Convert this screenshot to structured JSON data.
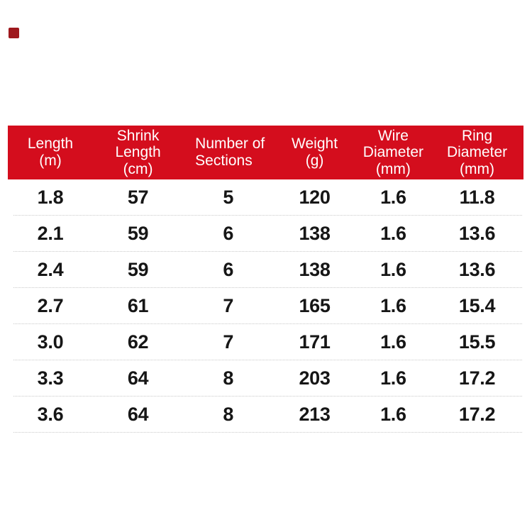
{
  "page": {
    "background_color": "#ffffff",
    "accent_color": "#d40d1d",
    "corner_mark_color": "#9e181d",
    "separator_color": "#c9c9c9",
    "data_text_color": "#161616",
    "header_text_color": "#ffffff"
  },
  "table": {
    "header": {
      "columns": [
        "Length\n(m)",
        "Shrink\nLength\n(cm)",
        "Number of\nSections",
        "Weight\n(g)",
        "Wire\nDiameter\n(mm)",
        "Ring\nDiameter\n(mm)"
      ]
    },
    "rows": [
      [
        "1.8",
        "57",
        "5",
        "120",
        "1.6",
        "11.8"
      ],
      [
        "2.1",
        "59",
        "6",
        "138",
        "1.6",
        "13.6"
      ],
      [
        "2.4",
        "59",
        "6",
        "138",
        "1.6",
        "13.6"
      ],
      [
        "2.7",
        "61",
        "7",
        "165",
        "1.6",
        "15.4"
      ],
      [
        "3.0",
        "62",
        "7",
        "171",
        "1.6",
        "15.5"
      ],
      [
        "3.3",
        "64",
        "8",
        "203",
        "1.6",
        "17.2"
      ],
      [
        "3.6",
        "64",
        "8",
        "213",
        "1.6",
        "17.2"
      ]
    ]
  },
  "chart_data": {
    "type": "table",
    "columns": [
      "Length (m)",
      "Shrink Length (cm)",
      "Number of Sections",
      "Weight (g)",
      "Wire Diameter (mm)",
      "Ring Diameter (mm)"
    ],
    "rows": [
      [
        1.8,
        57,
        5,
        120,
        1.6,
        11.8
      ],
      [
        2.1,
        59,
        6,
        138,
        1.6,
        13.6
      ],
      [
        2.4,
        59,
        6,
        138,
        1.6,
        13.6
      ],
      [
        2.7,
        61,
        7,
        165,
        1.6,
        15.4
      ],
      [
        3.0,
        62,
        7,
        171,
        1.6,
        15.5
      ],
      [
        3.3,
        64,
        8,
        203,
        1.6,
        17.2
      ],
      [
        3.6,
        64,
        8,
        213,
        1.6,
        17.2
      ]
    ],
    "title": "",
    "legend": null,
    "grid": "dotted row separators"
  }
}
